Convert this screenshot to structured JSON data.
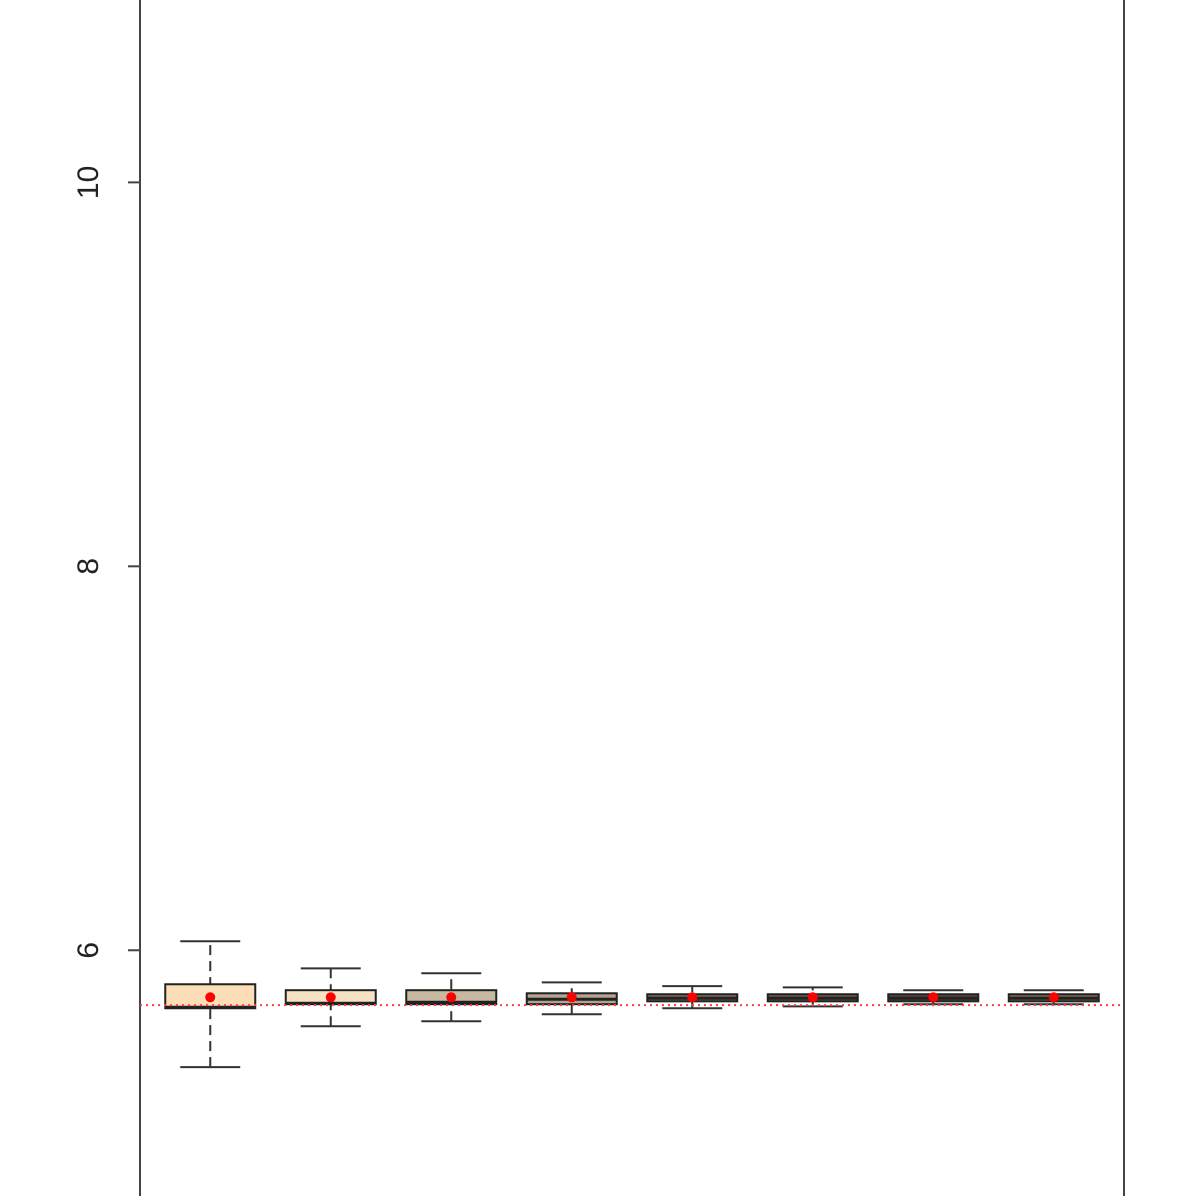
{
  "chart_data": {
    "type": "boxplot",
    "ylim": [
      4.72,
      10.95
    ],
    "yticks": [
      6,
      8,
      10
    ],
    "reference_line": 5.714,
    "boxes": [
      {
        "whislo": 5.391,
        "q1": 5.698,
        "med": 5.703,
        "q3": 5.823,
        "whishi": 6.047,
        "mean": 5.755,
        "color": "#fddcb8"
      },
      {
        "whislo": 5.604,
        "q1": 5.719,
        "med": 5.724,
        "q3": 5.792,
        "whishi": 5.906,
        "mean": 5.755,
        "color": "#f8e2c4"
      },
      {
        "whislo": 5.63,
        "q1": 5.719,
        "med": 5.729,
        "q3": 5.792,
        "whishi": 5.88,
        "mean": 5.755,
        "color": "#c9b8a0"
      },
      {
        "whislo": 5.667,
        "q1": 5.719,
        "med": 5.745,
        "q3": 5.776,
        "whishi": 5.833,
        "mean": 5.755,
        "color": "#b3a38f"
      },
      {
        "whislo": 5.698,
        "q1": 5.734,
        "med": 5.75,
        "q3": 5.771,
        "whishi": 5.813,
        "mean": 5.755,
        "color": "#7b6b5a"
      },
      {
        "whislo": 5.708,
        "q1": 5.734,
        "med": 5.75,
        "q3": 5.771,
        "whishi": 5.807,
        "mean": 5.755,
        "color": "#6a5a4a"
      },
      {
        "whislo": 5.719,
        "q1": 5.734,
        "med": 5.75,
        "q3": 5.771,
        "whishi": 5.792,
        "mean": 5.755,
        "color": "#5a4a3a"
      },
      {
        "whislo": 5.719,
        "q1": 5.734,
        "med": 5.75,
        "q3": 5.771,
        "whishi": 5.792,
        "mean": 5.755,
        "color": "#7a6a50"
      }
    ]
  }
}
